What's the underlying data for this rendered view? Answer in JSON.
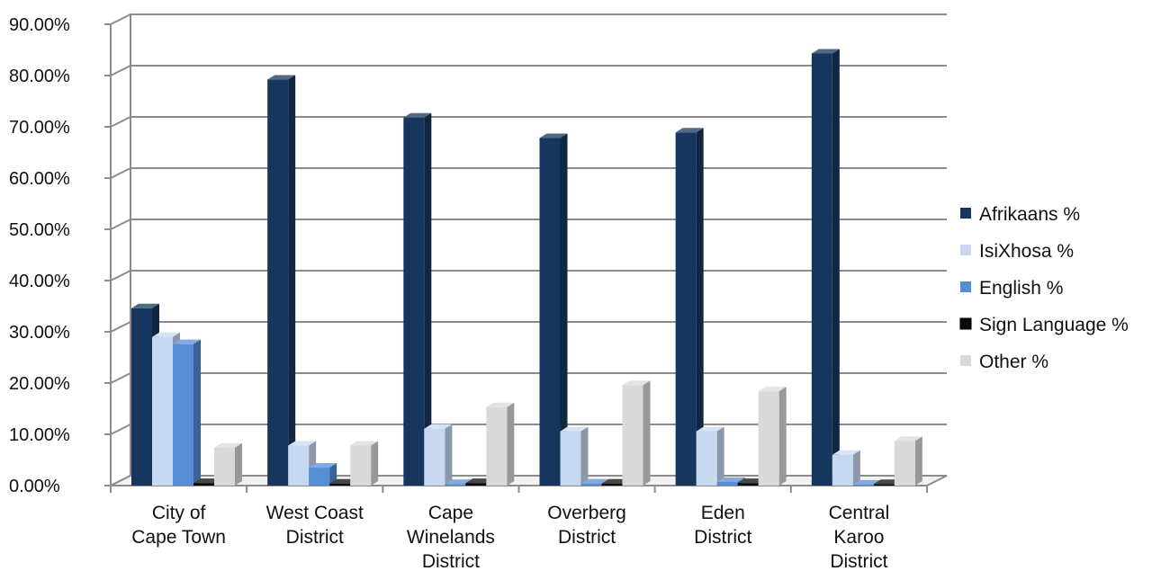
{
  "chart_data": {
    "type": "bar",
    "three_d": true,
    "categories": [
      [
        "City of",
        "Cape Town"
      ],
      [
        "West Coast",
        "District"
      ],
      [
        "Cape",
        "Winelands",
        "District"
      ],
      [
        "Overberg",
        "District"
      ],
      [
        "Eden",
        "District"
      ],
      [
        "Central",
        "Karoo",
        "District"
      ]
    ],
    "series": [
      {
        "name": "Afrikaans %",
        "color": "#17365d",
        "values": [
          34.6,
          79.2,
          71.8,
          67.8,
          68.9,
          84.3
        ]
      },
      {
        "name": "IsiXhosa %",
        "color": "#c6d9f1",
        "values": [
          29.0,
          7.8,
          11.1,
          10.6,
          10.6,
          6.0
        ]
      },
      {
        "name": "English %",
        "color": "#558ed5",
        "values": [
          27.6,
          3.5,
          0.3,
          0.4,
          0.7,
          0.2
        ]
      },
      {
        "name": "Sign Language %",
        "color": "#0a0a0a",
        "values": [
          0.5,
          0.4,
          0.5,
          0.4,
          0.5,
          0.3
        ]
      },
      {
        "name": "Other %",
        "color": "#d9d9d9",
        "values": [
          7.4,
          7.8,
          15.3,
          19.6,
          18.4,
          8.7
        ]
      }
    ],
    "y_ticks": [
      "0.00%",
      "10.00%",
      "20.00%",
      "30.00%",
      "40.00%",
      "50.00%",
      "60.00%",
      "70.00%",
      "80.00%",
      "90.00%"
    ],
    "ylim": [
      0,
      90
    ],
    "grid": true,
    "legend_position": "right"
  }
}
